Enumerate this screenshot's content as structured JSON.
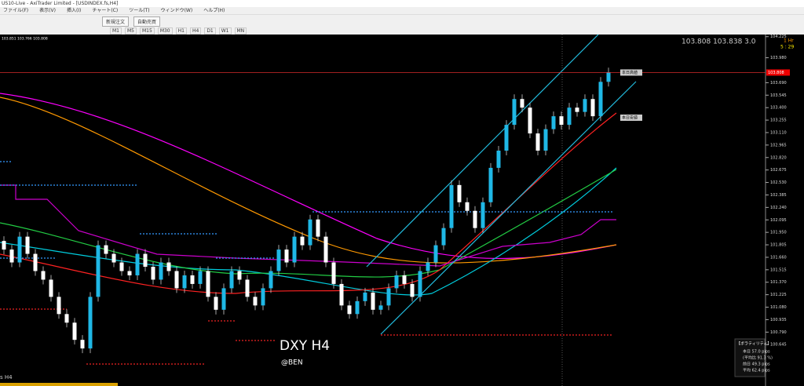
{
  "window": {
    "title": "US10-Live - AxiTrader Limited - [USDINDEX.fs,H4]"
  },
  "menu": [
    "ファイル(F)",
    "表示(V)",
    "挿入(I)",
    "チャート(C)",
    "ツール(T)",
    "ウィンドウ(W)",
    "ヘルプ(H)"
  ],
  "toolbar": {
    "new_order": "新規注文",
    "auto_trade": "自動売買"
  },
  "timeframes": [
    "M1",
    "M5",
    "M15",
    "M30",
    "H1",
    "H4",
    "D1",
    "W1",
    "MN"
  ],
  "chart_data": {
    "type": "candlestick",
    "ohlc_header": "103.851 103.766 103.808",
    "quote": "103.808 103.838 3.0",
    "timer_label": "1 Hr",
    "timer": "5 : 29",
    "watermark": "DXY H4",
    "author": "@BEN",
    "window_label": "s H4",
    "today_high": "本日高値",
    "today_low": "本日安値",
    "price": 103.808,
    "ylim": [
      100.2,
      104.25
    ],
    "yticks": [
      {
        "value": 104.225,
        "label": "104.225"
      },
      {
        "value": 103.98,
        "label": "103.980"
      },
      {
        "value": 103.69,
        "label": "103.690"
      },
      {
        "value": 103.545,
        "label": "103.545"
      },
      {
        "value": 103.4,
        "label": "103.400"
      },
      {
        "value": 103.255,
        "label": "103.255"
      },
      {
        "value": 103.11,
        "label": "103.110"
      },
      102.965,
      {
        "value": 102.82,
        "label": "102.820"
      },
      102.675,
      {
        "value": 102.53,
        "label": "102.530"
      },
      102.385,
      {
        "value": 102.24,
        "label": "102.240"
      },
      102.095,
      {
        "value": 101.95,
        "label": "101.950"
      },
      101.805,
      {
        "value": 101.66,
        "label": "101.660"
      },
      101.515,
      {
        "value": 101.37,
        "label": "101.370"
      },
      101.225,
      {
        "value": 101.08,
        "label": "101.080"
      },
      100.935,
      {
        "value": 100.79,
        "label": "100.790"
      },
      100.645
    ],
    "open": [
      101.85,
      101.75,
      101.6,
      101.9,
      101.7,
      101.5,
      101.4,
      101.2,
      101.0,
      100.9,
      100.7,
      100.6,
      101.2,
      101.8,
      101.7,
      101.6,
      101.5,
      101.45,
      101.7,
      101.55,
      101.4,
      101.6,
      101.5,
      101.3,
      101.45,
      101.35,
      101.5,
      101.2,
      101.05,
      101.3,
      101.5,
      101.4,
      101.2,
      101.1,
      101.3,
      101.5,
      101.75,
      101.6,
      101.9,
      101.8,
      102.1,
      101.9,
      101.6,
      101.35,
      101.1,
      101.0,
      101.15,
      101.25,
      101.05,
      101.1,
      101.3,
      101.45,
      101.35,
      101.2,
      101.5,
      101.6,
      101.8,
      102.0,
      102.5,
      102.3,
      102.2,
      102.0,
      102.3,
      102.7,
      102.9,
      103.2,
      103.5,
      103.4,
      103.1,
      102.9,
      103.15,
      103.3,
      103.2,
      103.4,
      103.35,
      103.5,
      103.3,
      103.7
    ],
    "close": [
      101.75,
      101.6,
      101.9,
      101.7,
      101.5,
      101.4,
      101.2,
      101.0,
      100.9,
      100.7,
      100.6,
      101.2,
      101.8,
      101.7,
      101.6,
      101.5,
      101.45,
      101.7,
      101.55,
      101.4,
      101.6,
      101.5,
      101.3,
      101.45,
      101.35,
      101.5,
      101.2,
      101.05,
      101.3,
      101.5,
      101.4,
      101.2,
      101.1,
      101.3,
      101.5,
      101.75,
      101.6,
      101.9,
      101.8,
      102.1,
      101.9,
      101.6,
      101.35,
      101.1,
      101.0,
      101.15,
      101.25,
      101.05,
      101.1,
      101.3,
      101.45,
      101.35,
      101.2,
      101.5,
      101.6,
      101.8,
      102.0,
      102.5,
      102.3,
      102.2,
      102.0,
      102.3,
      102.7,
      102.9,
      103.2,
      103.5,
      103.4,
      103.1,
      102.9,
      103.15,
      103.3,
      103.2,
      103.4,
      103.35,
      103.5,
      103.3,
      103.7,
      103.81
    ]
  },
  "volatility": {
    "title": "【ボラティリティ】",
    "rows": [
      "本日 57.0 pips",
      "(平均比 91.3 %)",
      "前日 49.3 pips",
      "平均 62.4 pips"
    ]
  }
}
